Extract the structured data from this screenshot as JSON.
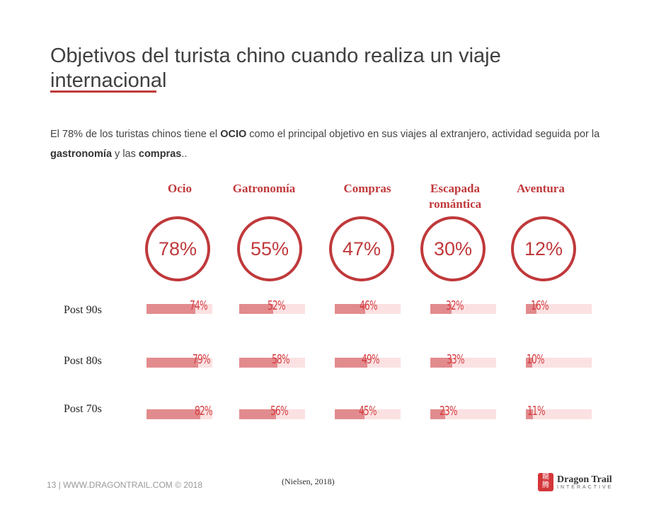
{
  "title": "Objetivos del turista chino cuando realiza un viaje internacional",
  "intro": {
    "p1": "El 78%  de los turistas chinos tiene el ",
    "b1": "OCIO",
    "p2": " como el principal objetivo en sus viajes al extranjero, actividad seguida por la ",
    "b2": "gastronomía",
    "p3": " y las ",
    "b3": "compras",
    "p4": ".."
  },
  "colors": {
    "accent": "#c0393b",
    "bar_fill": "#e28b8e",
    "bar_bg": "#fbe1e2"
  },
  "chart_data": {
    "type": "bar",
    "categories": [
      "Ocio",
      "Gatronomía",
      "Compras",
      "Escapada romántica",
      "Aventura"
    ],
    "totals": [
      78,
      55,
      47,
      30,
      12
    ],
    "totals_labels": [
      "78%",
      "55%",
      "47%",
      "30%",
      "12%"
    ],
    "series": [
      {
        "name": "Post 90s",
        "values": [
          74,
          52,
          46,
          32,
          16
        ],
        "labels": [
          "74%",
          "52%",
          "46%",
          "32%",
          "16%"
        ]
      },
      {
        "name": "Post 80s",
        "values": [
          79,
          58,
          49,
          33,
          10
        ],
        "labels": [
          "79%",
          "58%",
          "49%",
          "33%",
          "10%"
        ]
      },
      {
        "name": "Post 70s",
        "values": [
          82,
          56,
          45,
          23,
          11
        ],
        "labels": [
          "82%",
          "56%",
          "45%",
          "23%",
          "11%"
        ]
      }
    ],
    "ylim": [
      0,
      100
    ]
  },
  "footer": "13  |  WWW.DRAGONTRAIL.COM © 2018",
  "source": "(Nielsen, 2018)",
  "logo": {
    "name": "Dragon Trail",
    "sub": "INTERACTIVE",
    "mark": "龍\n腾"
  }
}
